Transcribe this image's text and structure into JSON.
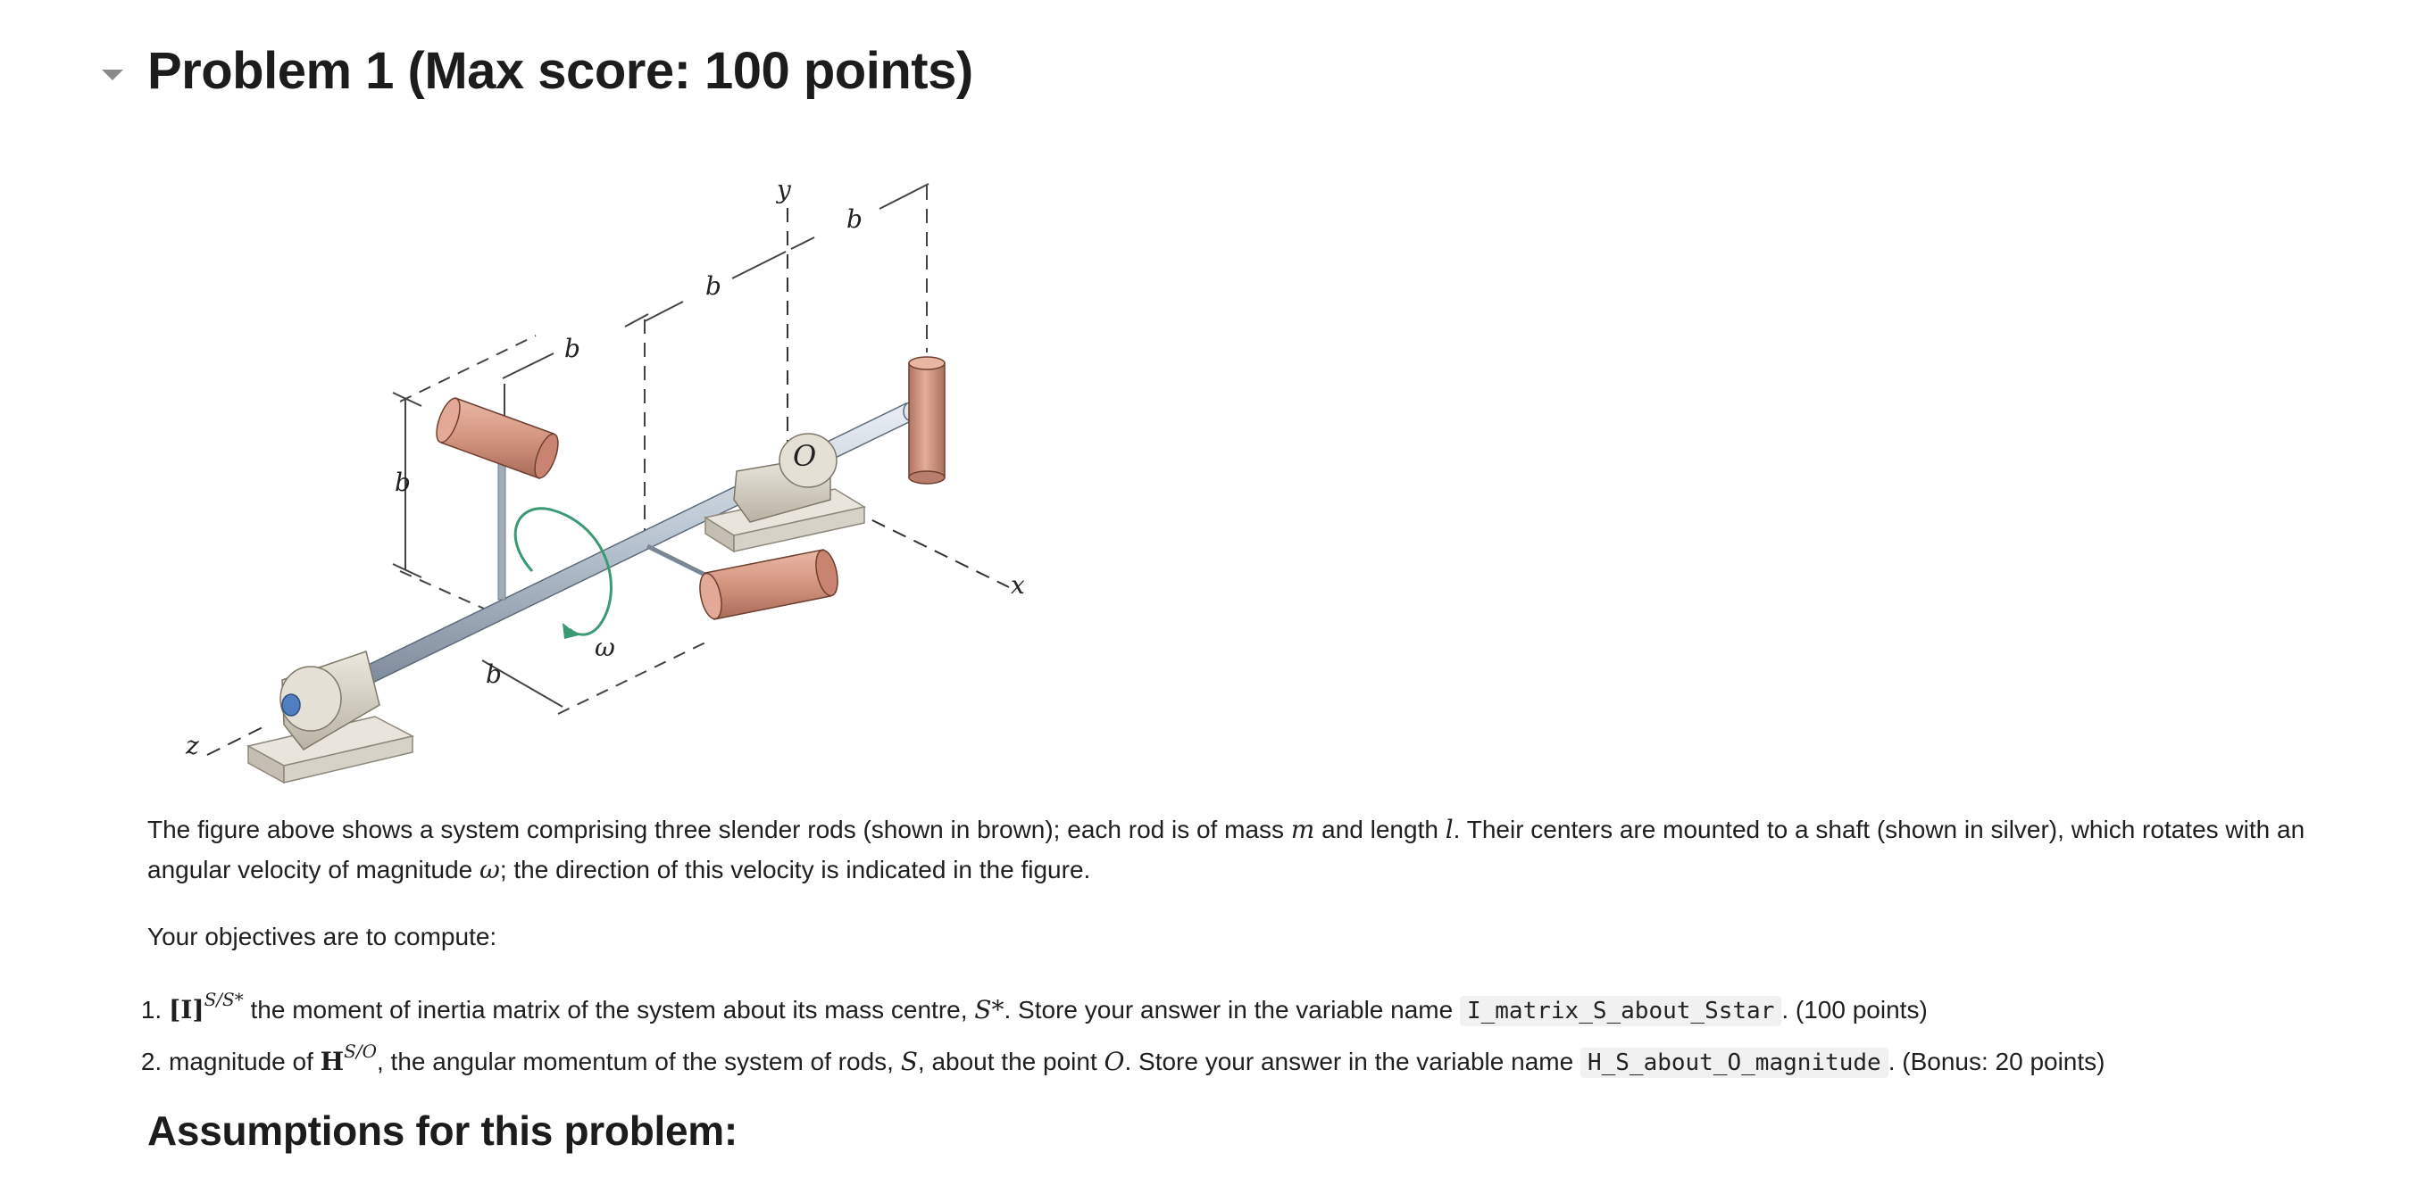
{
  "header": {
    "title": "Problem 1 (Max score: 100 points)"
  },
  "figure": {
    "labels": {
      "y": "y",
      "x": "x",
      "z": "z",
      "O": "O",
      "omega": "ω",
      "b_top_right": "b",
      "b_top_mid": "b",
      "b_top_left": "b",
      "b_vertical": "b",
      "b_bottom": "b"
    },
    "colors": {
      "rod": "#d99a86",
      "shaft": "#b8c4d2",
      "bearing": "#d8d3c8",
      "rotation_arrow": "#3a9a72"
    }
  },
  "intro": {
    "text_before_m": "The figure above shows a system comprising three slender rods (shown in brown); each rod is of mass ",
    "m": "m",
    "text_after_m": " and length ",
    "l": "l",
    "text_after_l": ". Their centers are mounted to a shaft (shown in silver), which rotates with an angular velocity of magnitude ",
    "omega": "ω",
    "text_end": "; the direction of this velocity is indicated in the figure."
  },
  "objectives_heading": "Your objectives are to compute:",
  "objectives": [
    {
      "symbol": "[I]",
      "superscript": "S/S*",
      "text_a": " the moment of inertia matrix of the system about its mass centre, ",
      "point": "S*",
      "text_b": ". Store your answer in the variable name ",
      "variable": "I_matrix_S_about_Sstar",
      "text_c": ". (100 points)"
    },
    {
      "text_pre": "magnitude of ",
      "symbol": "H",
      "superscript": "S/O",
      "text_a": ", the angular momentum of the system of rods, ",
      "system": "S",
      "text_b": ", about the point ",
      "point": "O",
      "text_c": ". Store your answer in the variable name ",
      "variable": "H_S_about_O_magnitude",
      "text_d": ". (Bonus: 20 points)"
    }
  ],
  "assumptions_heading": "Assumptions for this problem:"
}
